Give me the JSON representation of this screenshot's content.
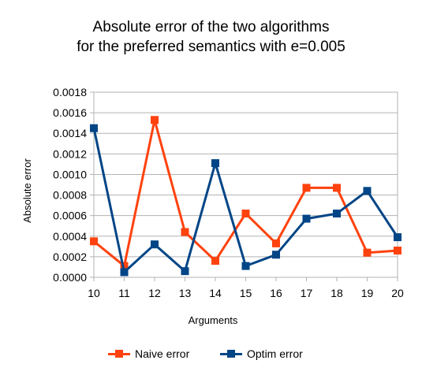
{
  "chart_data": {
    "type": "line",
    "title": "Absolute error of the two algorithms",
    "subtitle": "for the preferred semantics with e=0.005",
    "xlabel": "Arguments",
    "ylabel": "Absolute error",
    "categories": [
      "10",
      "11",
      "12",
      "13",
      "14",
      "15",
      "16",
      "17",
      "18",
      "19",
      "20"
    ],
    "ylim": [
      0,
      0.0018
    ],
    "yticks": [
      "0.0000",
      "0.0002",
      "0.0004",
      "0.0006",
      "0.0008",
      "0.0010",
      "0.0012",
      "0.0014",
      "0.0016",
      "0.0018"
    ],
    "grid": true,
    "legend_position": "bottom",
    "series": [
      {
        "name": "Naive error",
        "color": "#ff420e",
        "values": [
          0.00035,
          0.00011,
          0.00153,
          0.00044,
          0.00016,
          0.00062,
          0.00033,
          0.00087,
          0.00087,
          0.00024,
          0.00026
        ]
      },
      {
        "name": "Optim error",
        "color": "#004586",
        "values": [
          0.00145,
          5e-05,
          0.00032,
          6e-05,
          0.00111,
          0.00011,
          0.00022,
          0.00057,
          0.00062,
          0.00084,
          0.00039
        ]
      }
    ]
  }
}
